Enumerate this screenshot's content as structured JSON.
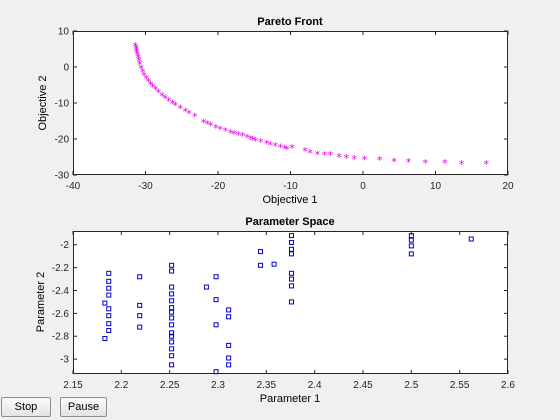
{
  "buttons": {
    "stop_label": "Stop",
    "pause_label": "Pause"
  },
  "chart_data": [
    {
      "type": "scatter",
      "title": "Pareto Front",
      "xlabel": "Objective 1",
      "ylabel": "Objective 2",
      "xlim": [
        -40,
        20
      ],
      "ylim": [
        -30,
        10
      ],
      "xticks": [
        -40,
        -30,
        -20,
        -10,
        0,
        10,
        20
      ],
      "yticks": [
        -30,
        -20,
        -10,
        0,
        10
      ],
      "grid": false,
      "marker": "star",
      "color": "#e000e0",
      "points": [
        [
          -31.4,
          5.9
        ],
        [
          -31.3,
          5.2
        ],
        [
          -31.25,
          4.6
        ],
        [
          -31.2,
          4.0
        ],
        [
          -31.1,
          3.3
        ],
        [
          -31.0,
          2.5
        ],
        [
          -30.9,
          1.6
        ],
        [
          -30.8,
          0.7
        ],
        [
          -30.6,
          -0.4
        ],
        [
          -30.4,
          -1.4
        ],
        [
          -30.2,
          -2.3
        ],
        [
          -29.9,
          -3.2
        ],
        [
          -29.6,
          -4.0
        ],
        [
          -29.3,
          -4.8
        ],
        [
          -29.0,
          -5.5
        ],
        [
          -28.6,
          -6.3
        ],
        [
          -28.2,
          -7.1
        ],
        [
          -27.7,
          -8.0
        ],
        [
          -27.3,
          -8.7
        ],
        [
          -26.8,
          -9.4
        ],
        [
          -26.3,
          -10.1
        ],
        [
          -25.9,
          -10.7
        ],
        [
          -25.2,
          -11.5
        ],
        [
          -24.5,
          -12.3
        ],
        [
          -24.0,
          -12.9
        ],
        [
          -23.2,
          -13.7
        ],
        [
          -22.0,
          -15.4
        ],
        [
          -21.5,
          -15.8
        ],
        [
          -21.0,
          -16.3
        ],
        [
          -20.3,
          -16.9
        ],
        [
          -19.7,
          -17.3
        ],
        [
          -19.0,
          -17.8
        ],
        [
          -18.3,
          -18.3
        ],
        [
          -17.8,
          -18.6
        ],
        [
          -17.2,
          -18.9
        ],
        [
          -16.6,
          -19.2
        ],
        [
          -16.0,
          -19.6
        ],
        [
          -15.5,
          -20.0
        ],
        [
          -15.2,
          -20.3
        ],
        [
          -14.8,
          -20.6
        ],
        [
          -14.1,
          -20.9
        ],
        [
          -13.3,
          -21.3
        ],
        [
          -12.8,
          -21.6
        ],
        [
          -12.1,
          -22.0
        ],
        [
          -11.4,
          -22.4
        ],
        [
          -10.8,
          -22.7
        ],
        [
          -10.5,
          -22.9
        ],
        [
          -9.8,
          -22.5
        ],
        [
          -8.0,
          -23.4
        ],
        [
          -7.3,
          -23.9
        ],
        [
          -6.3,
          -24.3
        ],
        [
          -5.3,
          -24.5
        ],
        [
          -4.5,
          -24.5
        ],
        [
          -3.3,
          -25.0
        ],
        [
          -2.3,
          -25.3
        ],
        [
          -1.2,
          -25.5
        ],
        [
          0.2,
          -25.7
        ],
        [
          2.3,
          -25.9
        ],
        [
          4.3,
          -26.2
        ],
        [
          6.3,
          -26.4
        ],
        [
          8.6,
          -26.6
        ],
        [
          11.3,
          -26.7
        ],
        [
          13.6,
          -26.9
        ],
        [
          17.0,
          -27.0
        ]
      ]
    },
    {
      "type": "scatter",
      "title": "Parameter Space",
      "xlabel": "Parameter 1",
      "ylabel": "Parameter 2",
      "xlim": [
        2.15,
        2.6
      ],
      "ylim": [
        -3.13,
        -1.88
      ],
      "xticks": [
        2.15,
        2.2,
        2.25,
        2.3,
        2.35,
        2.4,
        2.45,
        2.5,
        2.55,
        2.6
      ],
      "yticks": [
        -3,
        -2.8,
        -2.6,
        -2.4,
        -2.2,
        -2
      ],
      "grid": false,
      "marker": "square",
      "color": "#0000cc",
      "points": [
        [
          2.183,
          -2.51
        ],
        [
          2.183,
          -2.82
        ],
        [
          2.187,
          -2.25
        ],
        [
          2.187,
          -2.32
        ],
        [
          2.187,
          -2.38
        ],
        [
          2.187,
          -2.44
        ],
        [
          2.187,
          -2.56
        ],
        [
          2.187,
          -2.62
        ],
        [
          2.187,
          -2.69
        ],
        [
          2.187,
          -2.75
        ],
        [
          2.219,
          -2.28
        ],
        [
          2.219,
          -2.53
        ],
        [
          2.219,
          -2.62
        ],
        [
          2.219,
          -2.72
        ],
        [
          2.252,
          -2.18
        ],
        [
          2.252,
          -2.23
        ],
        [
          2.252,
          -2.37
        ],
        [
          2.252,
          -2.43
        ],
        [
          2.252,
          -2.49
        ],
        [
          2.252,
          -2.55
        ],
        [
          2.252,
          -2.59
        ],
        [
          2.252,
          -2.64
        ],
        [
          2.252,
          -2.7
        ],
        [
          2.252,
          -2.77
        ],
        [
          2.252,
          -2.8
        ],
        [
          2.252,
          -2.85
        ],
        [
          2.252,
          -2.91
        ],
        [
          2.252,
          -2.97
        ],
        [
          2.252,
          -3.05
        ],
        [
          2.288,
          -2.37
        ],
        [
          2.298,
          -2.28
        ],
        [
          2.298,
          -2.48
        ],
        [
          2.298,
          -2.7
        ],
        [
          2.298,
          -3.11
        ],
        [
          2.311,
          -2.57
        ],
        [
          2.311,
          -2.63
        ],
        [
          2.311,
          -2.88
        ],
        [
          2.311,
          -2.99
        ],
        [
          2.311,
          -3.05
        ],
        [
          2.344,
          -2.06
        ],
        [
          2.344,
          -2.18
        ],
        [
          2.358,
          -2.17
        ],
        [
          2.376,
          -1.92
        ],
        [
          2.376,
          -1.98
        ],
        [
          2.376,
          -2.04
        ],
        [
          2.376,
          -2.08
        ],
        [
          2.376,
          -2.25
        ],
        [
          2.376,
          -2.3
        ],
        [
          2.376,
          -2.36
        ],
        [
          2.376,
          -2.5
        ],
        [
          2.5,
          -1.92
        ],
        [
          2.5,
          -1.96
        ],
        [
          2.5,
          -2.01
        ],
        [
          2.5,
          -2.08
        ],
        [
          2.562,
          -1.95
        ]
      ]
    }
  ]
}
